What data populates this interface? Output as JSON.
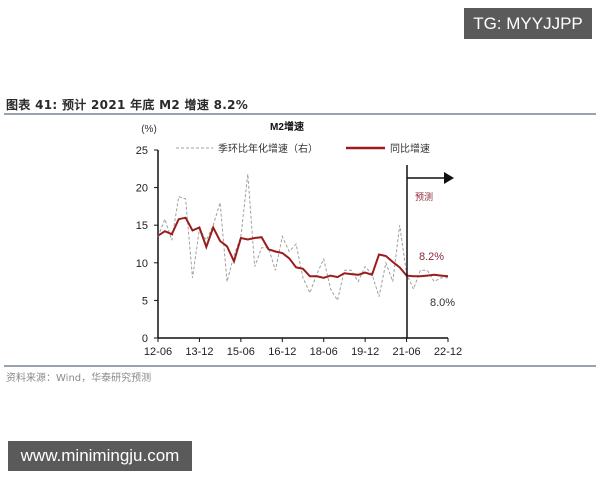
{
  "watermarks": {
    "top_right": "TG: MYYJJPP",
    "bottom_left": "www.minimingju.com"
  },
  "figure": {
    "title": "图表 41:   预计 2021 年底 M2 增速 8.2%",
    "source": "资料来源：Wind，华泰研究预测"
  },
  "chart_data": {
    "type": "line",
    "title": "M2增速",
    "ylabel": "(%)",
    "xlabel": "",
    "ylim": [
      0,
      25
    ],
    "yticks": [
      0,
      5,
      10,
      15,
      20,
      25
    ],
    "xticks": [
      "12-06",
      "13-12",
      "15-06",
      "16-12",
      "18-06",
      "19-12",
      "21-06",
      "22-12"
    ],
    "grid": false,
    "legend_position": "top",
    "forecast_start": "21-06",
    "annotations": {
      "forecast_label": "预测",
      "yoy_end_value": "8.2%",
      "qoq_end_value": "8.0%"
    },
    "series": [
      {
        "name": "季环比年化增速（右）",
        "style": "dashed",
        "color": "#a0a0a0",
        "x": [
          "12-06",
          "12-09",
          "12-12",
          "13-03",
          "13-06",
          "13-09",
          "13-12",
          "14-03",
          "14-06",
          "14-09",
          "14-12",
          "15-03",
          "15-06",
          "15-09",
          "15-12",
          "16-03",
          "16-06",
          "16-09",
          "16-12",
          "17-03",
          "17-06",
          "17-09",
          "17-12",
          "18-03",
          "18-06",
          "18-09",
          "18-12",
          "19-03",
          "19-06",
          "19-09",
          "19-12",
          "20-03",
          "20-06",
          "20-09",
          "20-12",
          "21-03",
          "21-06",
          "21-09",
          "21-12",
          "22-03",
          "22-06",
          "22-09",
          "22-12"
        ],
        "values": [
          13.5,
          15.8,
          13.0,
          18.8,
          18.5,
          8.0,
          14.5,
          13.0,
          15.0,
          18.0,
          7.5,
          11.0,
          13.5,
          21.8,
          9.5,
          12.0,
          12.0,
          9.0,
          13.5,
          11.5,
          12.5,
          8.0,
          6.0,
          8.5,
          10.5,
          6.5,
          5.0,
          9.0,
          9.0,
          7.5,
          9.5,
          8.5,
          5.5,
          10.0,
          7.5,
          15.0,
          8.5,
          6.5,
          9.0,
          9.0,
          7.5,
          8.0,
          8.0
        ]
      },
      {
        "name": "同比增速",
        "style": "solid",
        "color": "#9b1c1c",
        "x": [
          "12-06",
          "12-09",
          "12-12",
          "13-03",
          "13-06",
          "13-09",
          "13-12",
          "14-03",
          "14-06",
          "14-09",
          "14-12",
          "15-03",
          "15-06",
          "15-09",
          "15-12",
          "16-03",
          "16-06",
          "16-09",
          "16-12",
          "17-03",
          "17-06",
          "17-09",
          "17-12",
          "18-03",
          "18-06",
          "18-09",
          "18-12",
          "19-03",
          "19-06",
          "19-09",
          "19-12",
          "20-03",
          "20-06",
          "20-09",
          "20-12",
          "21-03",
          "21-06",
          "21-09",
          "21-12",
          "22-03",
          "22-06",
          "22-09",
          "22-12"
        ],
        "values": [
          13.6,
          14.2,
          13.8,
          15.8,
          16.0,
          14.3,
          14.7,
          12.1,
          14.7,
          12.9,
          12.2,
          10.2,
          13.3,
          13.1,
          13.3,
          13.4,
          11.8,
          11.5,
          11.3,
          10.6,
          9.4,
          9.2,
          8.2,
          8.2,
          8.0,
          8.3,
          8.1,
          8.6,
          8.5,
          8.4,
          8.7,
          8.4,
          11.1,
          10.9,
          10.1,
          9.4,
          8.3,
          8.2,
          8.2,
          8.3,
          8.4,
          8.3,
          8.2
        ]
      }
    ]
  }
}
